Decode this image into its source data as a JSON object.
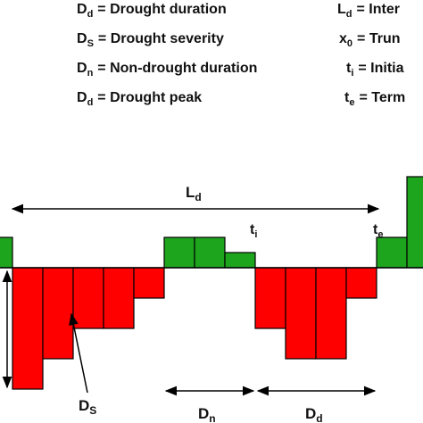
{
  "legend": [
    {
      "sym": "D",
      "sub": "d",
      "text": "= Drought duration"
    },
    {
      "sym": "D",
      "sub": "S",
      "text": "= Drought severity"
    },
    {
      "sym": "D",
      "sub": "n",
      "text": "= Non-drought duration"
    },
    {
      "sym": "D",
      "sub": "d",
      "text": "= Drought peak"
    },
    {
      "sym": "L",
      "sub": "d",
      "text": "= Inter"
    },
    {
      "sym": "x",
      "sub": "0",
      "text": "= Trun"
    },
    {
      "sym": "t",
      "sub": "i",
      "text": "= Initia"
    },
    {
      "sym": "t",
      "sub": "e",
      "text": "= Term"
    }
  ],
  "labels": {
    "ld": {
      "sym": "L",
      "sub": "d"
    },
    "ti": {
      "sym": "t",
      "sub": "i"
    },
    "te": {
      "sym": "t",
      "sub": "e"
    },
    "ds": {
      "sym": "D",
      "sub": "S"
    },
    "dn": {
      "sym": "D",
      "sub": "n"
    },
    "dd": {
      "sym": "D",
      "sub": "d"
    }
  },
  "series": {
    "values": [
      1,
      -4,
      -3,
      -2,
      -2,
      -1,
      1,
      1,
      0.5,
      -2,
      -3,
      -3,
      -1,
      1,
      3
    ],
    "colors": {
      "positive": "#1ea51e",
      "negative": "#ff0000",
      "stroke": "#000000"
    }
  }
}
